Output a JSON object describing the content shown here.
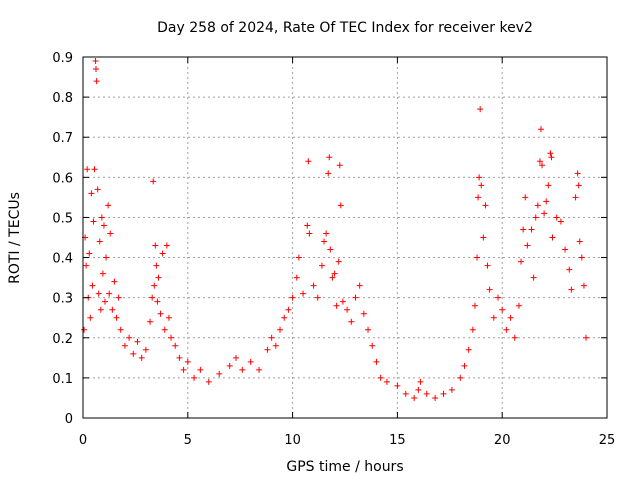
{
  "chart_data": {
    "type": "scatter",
    "title": "Day 258 of 2024, Rate Of TEC Index for receiver kev2",
    "xlabel": "GPS time / hours",
    "ylabel": "ROTI / TECUs",
    "xlim": [
      0,
      25
    ],
    "ylim": [
      0,
      0.9
    ],
    "xticks": [
      "0",
      "5",
      "10",
      "15",
      "20",
      "25"
    ],
    "yticks": [
      "0",
      "0.1",
      "0.2",
      "0.3",
      "0.4",
      "0.5",
      "0.6",
      "0.7",
      "0.8",
      "0.9"
    ],
    "grid": true,
    "marker": "+",
    "marker_color": "#ff0000",
    "series": [
      {
        "points": [
          [
            0.05,
            0.22
          ],
          [
            0.1,
            0.45
          ],
          [
            0.15,
            0.38
          ],
          [
            0.2,
            0.62
          ],
          [
            0.25,
            0.3
          ],
          [
            0.3,
            0.41
          ],
          [
            0.35,
            0.25
          ],
          [
            0.4,
            0.56
          ],
          [
            0.45,
            0.33
          ],
          [
            0.5,
            0.49
          ],
          [
            0.55,
            0.62
          ],
          [
            0.6,
            0.89
          ],
          [
            0.62,
            0.87
          ],
          [
            0.65,
            0.84
          ],
          [
            0.7,
            0.57
          ],
          [
            0.75,
            0.31
          ],
          [
            0.8,
            0.44
          ],
          [
            0.85,
            0.27
          ],
          [
            0.9,
            0.5
          ],
          [
            0.95,
            0.36
          ],
          [
            1.0,
            0.48
          ],
          [
            1.05,
            0.29
          ],
          [
            1.1,
            0.4
          ],
          [
            1.2,
            0.53
          ],
          [
            1.25,
            0.31
          ],
          [
            1.3,
            0.46
          ],
          [
            1.4,
            0.27
          ],
          [
            1.5,
            0.34
          ],
          [
            1.6,
            0.25
          ],
          [
            1.7,
            0.3
          ],
          [
            1.8,
            0.22
          ],
          [
            2.0,
            0.18
          ],
          [
            2.2,
            0.2
          ],
          [
            2.4,
            0.16
          ],
          [
            2.6,
            0.19
          ],
          [
            2.8,
            0.15
          ],
          [
            3.0,
            0.17
          ],
          [
            3.2,
            0.24
          ],
          [
            3.3,
            0.3
          ],
          [
            3.35,
            0.59
          ],
          [
            3.4,
            0.33
          ],
          [
            3.45,
            0.43
          ],
          [
            3.5,
            0.38
          ],
          [
            3.55,
            0.29
          ],
          [
            3.6,
            0.35
          ],
          [
            3.7,
            0.26
          ],
          [
            3.8,
            0.41
          ],
          [
            3.9,
            0.22
          ],
          [
            4.0,
            0.43
          ],
          [
            4.1,
            0.25
          ],
          [
            4.2,
            0.2
          ],
          [
            4.4,
            0.18
          ],
          [
            4.6,
            0.15
          ],
          [
            4.8,
            0.12
          ],
          [
            5.0,
            0.14
          ],
          [
            5.3,
            0.1
          ],
          [
            5.6,
            0.12
          ],
          [
            6.0,
            0.09
          ],
          [
            6.5,
            0.11
          ],
          [
            7.0,
            0.13
          ],
          [
            7.3,
            0.15
          ],
          [
            7.6,
            0.12
          ],
          [
            8.0,
            0.14
          ],
          [
            8.4,
            0.12
          ],
          [
            8.8,
            0.17
          ],
          [
            9.0,
            0.2
          ],
          [
            9.2,
            0.18
          ],
          [
            9.4,
            0.22
          ],
          [
            9.6,
            0.25
          ],
          [
            9.8,
            0.27
          ],
          [
            10.0,
            0.3
          ],
          [
            10.2,
            0.35
          ],
          [
            10.3,
            0.4
          ],
          [
            10.5,
            0.31
          ],
          [
            10.7,
            0.48
          ],
          [
            10.75,
            0.64
          ],
          [
            10.8,
            0.46
          ],
          [
            11.0,
            0.33
          ],
          [
            11.2,
            0.3
          ],
          [
            11.4,
            0.38
          ],
          [
            11.5,
            0.44
          ],
          [
            11.6,
            0.46
          ],
          [
            11.7,
            0.61
          ],
          [
            11.75,
            0.65
          ],
          [
            11.8,
            0.42
          ],
          [
            11.9,
            0.35
          ],
          [
            12.0,
            0.36
          ],
          [
            12.1,
            0.28
          ],
          [
            12.2,
            0.39
          ],
          [
            12.25,
            0.63
          ],
          [
            12.3,
            0.53
          ],
          [
            12.4,
            0.29
          ],
          [
            12.6,
            0.27
          ],
          [
            12.8,
            0.24
          ],
          [
            13.0,
            0.3
          ],
          [
            13.2,
            0.33
          ],
          [
            13.4,
            0.26
          ],
          [
            13.6,
            0.22
          ],
          [
            13.8,
            0.18
          ],
          [
            14.0,
            0.14
          ],
          [
            14.2,
            0.1
          ],
          [
            14.5,
            0.09
          ],
          [
            15.0,
            0.08
          ],
          [
            15.4,
            0.06
          ],
          [
            15.8,
            0.05
          ],
          [
            16.0,
            0.07
          ],
          [
            16.1,
            0.09
          ],
          [
            16.4,
            0.06
          ],
          [
            16.8,
            0.05
          ],
          [
            17.2,
            0.06
          ],
          [
            17.6,
            0.07
          ],
          [
            18.0,
            0.1
          ],
          [
            18.2,
            0.13
          ],
          [
            18.4,
            0.17
          ],
          [
            18.6,
            0.22
          ],
          [
            18.7,
            0.28
          ],
          [
            18.8,
            0.4
          ],
          [
            18.85,
            0.55
          ],
          [
            18.9,
            0.6
          ],
          [
            18.95,
            0.77
          ],
          [
            19.0,
            0.58
          ],
          [
            19.1,
            0.45
          ],
          [
            19.2,
            0.53
          ],
          [
            19.3,
            0.38
          ],
          [
            19.4,
            0.32
          ],
          [
            19.6,
            0.25
          ],
          [
            19.8,
            0.3
          ],
          [
            20.0,
            0.27
          ],
          [
            20.2,
            0.22
          ],
          [
            20.4,
            0.25
          ],
          [
            20.6,
            0.2
          ],
          [
            20.8,
            0.28
          ],
          [
            20.9,
            0.39
          ],
          [
            21.0,
            0.47
          ],
          [
            21.1,
            0.55
          ],
          [
            21.2,
            0.43
          ],
          [
            21.4,
            0.47
          ],
          [
            21.5,
            0.35
          ],
          [
            21.6,
            0.5
          ],
          [
            21.7,
            0.53
          ],
          [
            21.8,
            0.64
          ],
          [
            21.85,
            0.72
          ],
          [
            21.9,
            0.63
          ],
          [
            22.0,
            0.51
          ],
          [
            22.1,
            0.54
          ],
          [
            22.2,
            0.58
          ],
          [
            22.3,
            0.66
          ],
          [
            22.35,
            0.65
          ],
          [
            22.4,
            0.45
          ],
          [
            22.6,
            0.5
          ],
          [
            22.8,
            0.49
          ],
          [
            23.0,
            0.42
          ],
          [
            23.2,
            0.37
          ],
          [
            23.3,
            0.32
          ],
          [
            23.5,
            0.55
          ],
          [
            23.6,
            0.61
          ],
          [
            23.65,
            0.58
          ],
          [
            23.7,
            0.44
          ],
          [
            23.8,
            0.4
          ],
          [
            23.9,
            0.33
          ],
          [
            24.0,
            0.2
          ]
        ]
      }
    ]
  }
}
